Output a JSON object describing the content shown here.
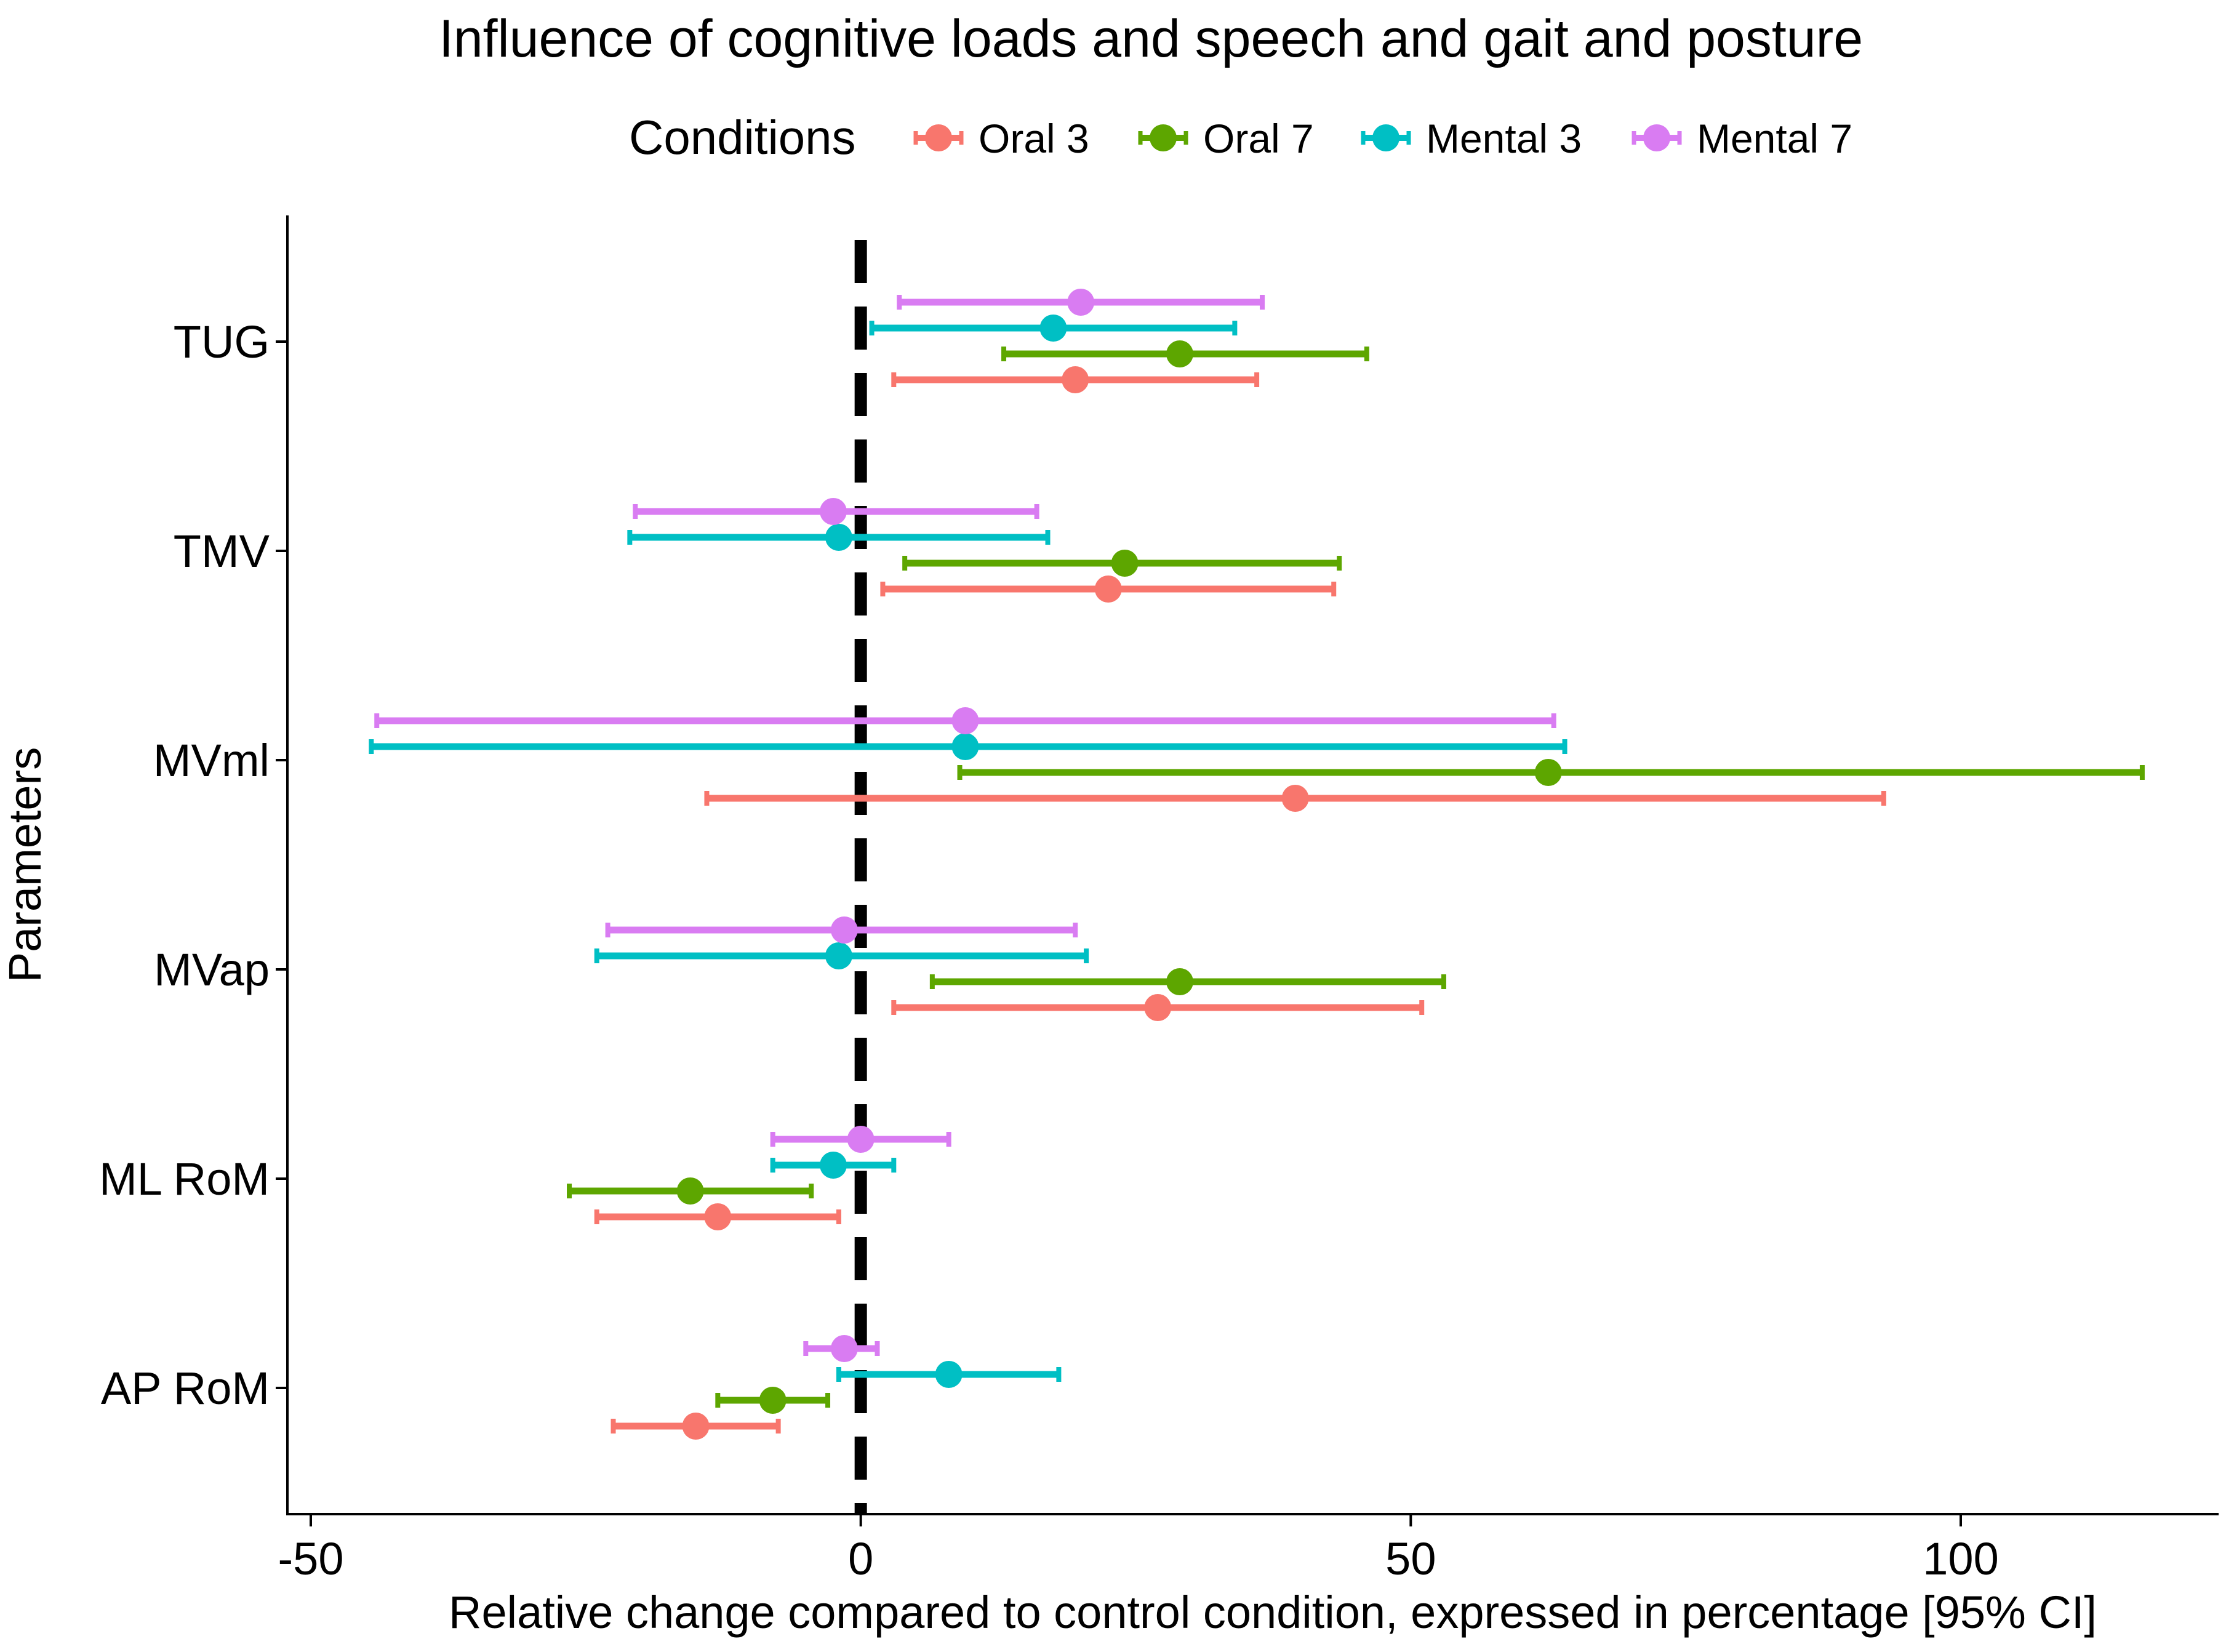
{
  "chart_data": {
    "type": "forest",
    "title": "Influence of cognitive loads and speech and gait and posture",
    "xlabel": "Relative change compared to control condition, expressed in percentage [95% CI]",
    "ylabel": "Parameters",
    "xlim": [
      -50,
      124
    ],
    "xticks": [
      -50,
      0,
      50,
      100
    ],
    "reference_line": 0,
    "legend": {
      "title": "Conditions",
      "position": "top"
    },
    "categories": [
      "TUG",
      "TMV",
      "MVml",
      "MVap",
      "ML RoM",
      "AP RoM"
    ],
    "series": [
      {
        "name": "Oral 3",
        "color": "#F8766D",
        "estimates": [
          19.5,
          22.5,
          39.5,
          27,
          -13.0,
          -15.0
        ],
        "lower": [
          3,
          2,
          -14,
          3,
          -24,
          -22.5
        ],
        "upper": [
          36,
          43,
          93,
          51,
          -2,
          -7.5
        ]
      },
      {
        "name": "Oral 7",
        "color": "#5DA600",
        "estimates": [
          29,
          24,
          62.5,
          29,
          -15.5,
          -8.0
        ],
        "lower": [
          13,
          4,
          9,
          6.5,
          -26.5,
          -13
        ],
        "upper": [
          46,
          43.5,
          116.5,
          53,
          -4.5,
          -3
        ]
      },
      {
        "name": "Mental 3",
        "color": "#00BFC4",
        "estimates": [
          17.5,
          -2,
          9.5,
          -2,
          -2.5,
          8.0
        ],
        "lower": [
          1,
          -21,
          -44.5,
          -24,
          -8,
          -2
        ],
        "upper": [
          34,
          17,
          64,
          20.5,
          3,
          18
        ]
      },
      {
        "name": "Mental 7",
        "color": "#D97CF2",
        "estimates": [
          20,
          -2.5,
          9.5,
          -1.5,
          0,
          -1.5
        ],
        "lower": [
          3.5,
          -20.5,
          -44,
          -23,
          -8,
          -5
        ],
        "upper": [
          36.5,
          16,
          63,
          19.5,
          8,
          1.5
        ]
      }
    ]
  }
}
